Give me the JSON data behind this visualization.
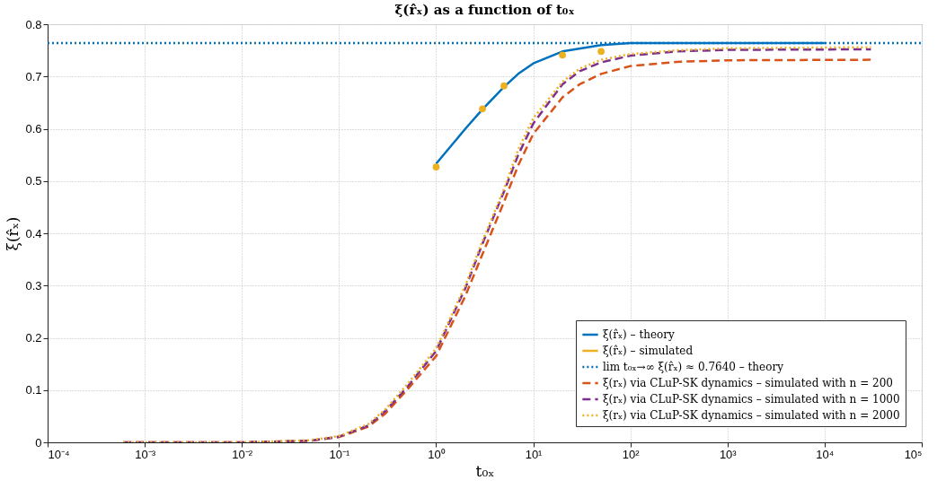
{
  "chart_data": {
    "type": "line",
    "title": "ξ(r̂ₓ) as a function of t₀ₓ",
    "xlabel": "t₀ₓ",
    "ylabel": "ξ(r̂ₓ)",
    "log": "x",
    "xlim": [
      0.0001,
      100000
    ],
    "ylim": [
      0,
      0.8
    ],
    "xticks": [
      {
        "value": 0.0001,
        "label": "10⁻⁴"
      },
      {
        "value": 0.001,
        "label": "10⁻³"
      },
      {
        "value": 0.01,
        "label": "10⁻²"
      },
      {
        "value": 0.1,
        "label": "10⁻¹"
      },
      {
        "value": 1,
        "label": "10⁰"
      },
      {
        "value": 10,
        "label": "10¹"
      },
      {
        "value": 100,
        "label": "10²"
      },
      {
        "value": 1000,
        "label": "10³"
      },
      {
        "value": 10000,
        "label": "10⁴"
      },
      {
        "value": 100000,
        "label": "10⁵"
      }
    ],
    "yticks": [
      0,
      0.1,
      0.2,
      0.3,
      0.4,
      0.5,
      0.6,
      0.7,
      0.8
    ],
    "grid": true,
    "legend": "bottom right",
    "series": [
      {
        "name": "ξ(r̂ₓ) – theory",
        "type": "line",
        "line_style": "solid",
        "color": "#0072bd",
        "x": [
          1,
          2,
          3,
          5,
          7,
          10,
          20,
          50,
          100,
          10000
        ],
        "values": [
          0.533,
          0.6,
          0.637,
          0.68,
          0.705,
          0.725,
          0.748,
          0.76,
          0.764,
          0.764
        ]
      },
      {
        "name": "ξ(r̂ₓ) – simulated",
        "type": "scatter",
        "marker": "circle",
        "color": "#edb120",
        "x": [
          1,
          3,
          5,
          20,
          50
        ],
        "values": [
          0.527,
          0.638,
          0.682,
          0.741,
          0.748
        ]
      },
      {
        "name": "lim t₀ₓ→∞ ξ(r̂ₓ) ≈ 0.7640 – theory",
        "type": "line",
        "line_style": "dotted",
        "color": "#0072bd",
        "x": [
          0.0001,
          100000
        ],
        "values": [
          0.764,
          0.764
        ]
      },
      {
        "name": "ξ(rₓ) via CLuP-SK dynamics – simulated with n = 200",
        "type": "line",
        "line_style": "dashed",
        "color": "#d95319",
        "x": [
          0.0006,
          0.001,
          0.01,
          0.05,
          0.1,
          0.2,
          0.3,
          0.5,
          1,
          2,
          3,
          5,
          7,
          10,
          20,
          30,
          50,
          100,
          300,
          1000,
          30000
        ],
        "values": [
          0,
          0,
          0,
          0.003,
          0.01,
          0.03,
          0.055,
          0.1,
          0.165,
          0.28,
          0.36,
          0.46,
          0.53,
          0.59,
          0.66,
          0.685,
          0.705,
          0.72,
          0.728,
          0.731,
          0.732
        ]
      },
      {
        "name": "ξ(rₓ) via CLuP-SK dynamics – simulated with n = 1000",
        "type": "line",
        "line_style": "dashed",
        "color": "#7e2f8e",
        "x": [
          0.0006,
          0.001,
          0.01,
          0.05,
          0.1,
          0.2,
          0.3,
          0.5,
          1,
          2,
          3,
          5,
          7,
          10,
          20,
          30,
          50,
          100,
          300,
          1000,
          30000
        ],
        "values": [
          0,
          0,
          0,
          0.003,
          0.011,
          0.032,
          0.06,
          0.105,
          0.175,
          0.295,
          0.38,
          0.48,
          0.55,
          0.61,
          0.685,
          0.71,
          0.727,
          0.74,
          0.748,
          0.751,
          0.752
        ]
      },
      {
        "name": "ξ(rₓ) via CLuP-SK dynamics – simulated with n = 2000",
        "type": "line",
        "line_style": "dotted",
        "color": "#edb120",
        "x": [
          0.0006,
          0.001,
          0.01,
          0.05,
          0.1,
          0.2,
          0.3,
          0.5,
          1,
          2,
          3,
          5,
          7,
          10,
          20,
          30,
          50,
          100,
          300,
          1000,
          30000
        ],
        "values": [
          0,
          0,
          0,
          0.004,
          0.012,
          0.035,
          0.063,
          0.11,
          0.18,
          0.3,
          0.385,
          0.485,
          0.56,
          0.62,
          0.69,
          0.715,
          0.732,
          0.743,
          0.75,
          0.754,
          0.756
        ]
      }
    ]
  }
}
